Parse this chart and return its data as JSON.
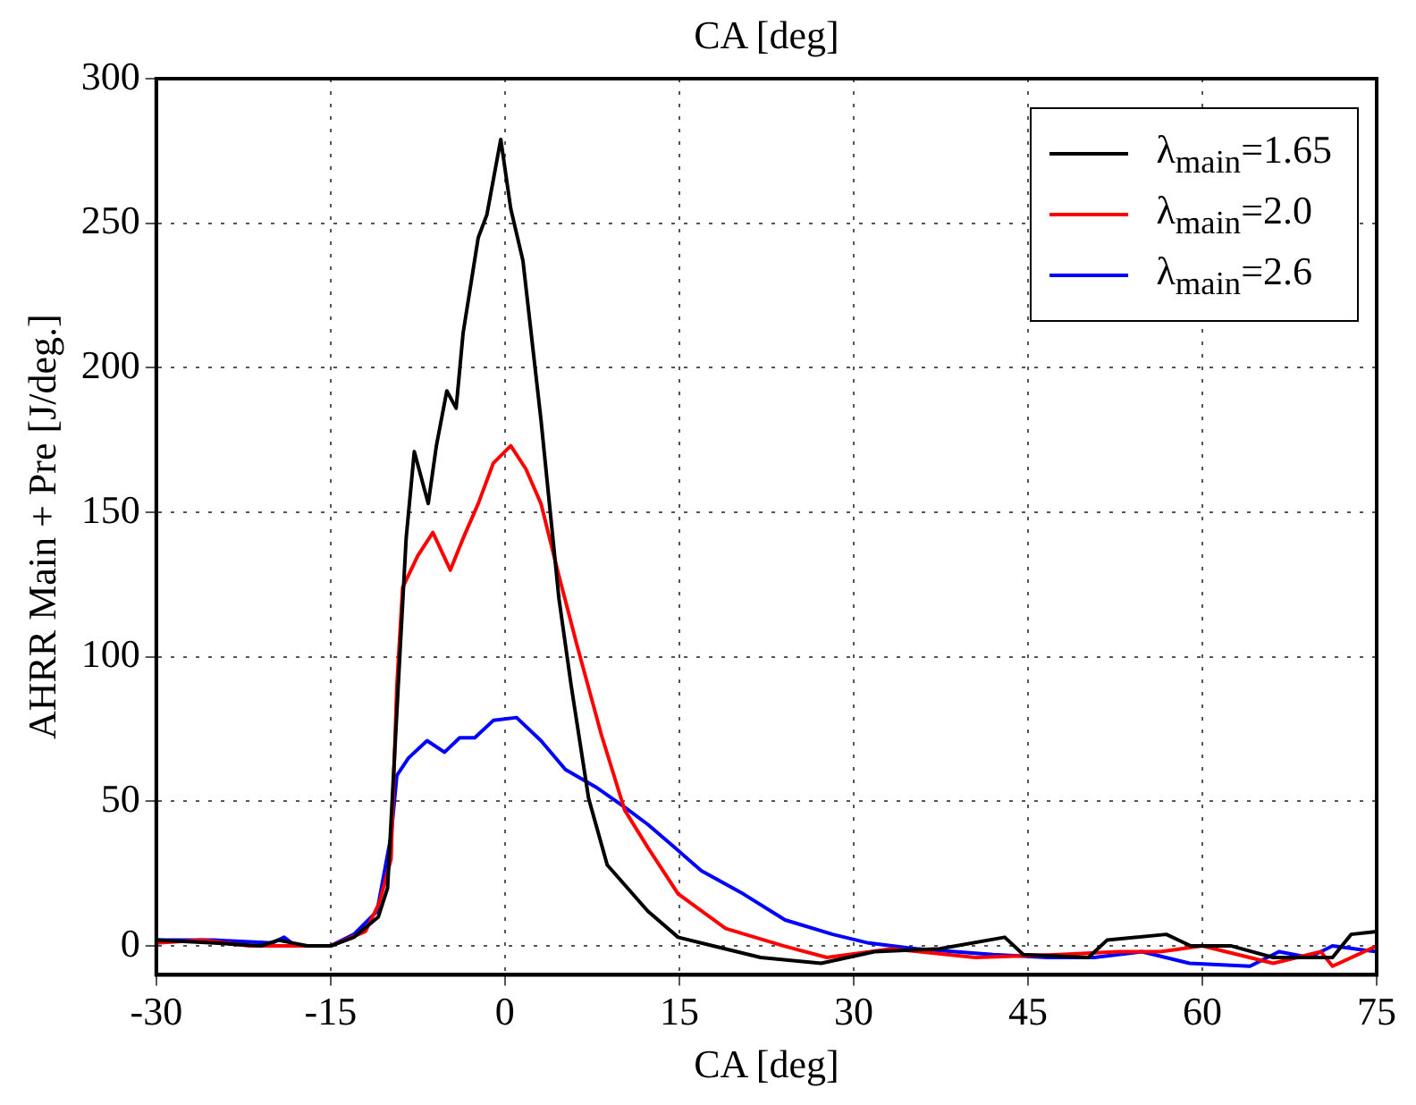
{
  "chart_data": {
    "type": "line",
    "xlabel": "CA [deg]",
    "ylabel": "AHRR Main + Pre [J/deg.]",
    "annotations": [
      "CA [deg]"
    ],
    "xlim": [
      -30,
      75
    ],
    "xticks": [
      -30,
      -15,
      0,
      15,
      30,
      45,
      60,
      75
    ],
    "ylim": [
      -10,
      300
    ],
    "yticks": [
      0,
      50,
      100,
      150,
      200,
      250,
      300
    ],
    "grid": true,
    "legend": "top right",
    "marker": "none",
    "line_style": "solid",
    "series": [
      {
        "name": "λ$_{main}$=1.65",
        "color": "#000000",
        "x": [
          -30,
          -25,
          -21,
          -19.5,
          -17,
          -15,
          -13,
          -10.9,
          -10.1,
          -9.05,
          -8.5,
          -7.8,
          -6.6,
          -5.9,
          -5.0,
          -4.2,
          -3.6,
          -2.3,
          -1.55,
          -0.36,
          0.5,
          1.55,
          3.1,
          4.65,
          5.7,
          7.2,
          8.8,
          12.3,
          14.9,
          17.9,
          22,
          27.2,
          31.8,
          37.4,
          43,
          44.6,
          50.2,
          51.8,
          56.9,
          59,
          62.5,
          66.1,
          71.2,
          72.8,
          75
        ],
        "values": [
          2,
          1,
          0,
          2,
          0,
          0,
          3,
          10,
          20,
          100,
          141,
          171,
          153,
          173,
          192,
          186,
          212,
          245,
          253,
          279,
          255,
          237,
          182,
          120,
          90,
          51,
          28,
          12,
          3,
          0,
          -4,
          -6,
          -2,
          -1,
          3,
          -3,
          -4,
          2,
          4,
          0,
          0,
          -4,
          -4,
          4,
          5
        ]
      },
      {
        "name": "λ$_{main}$=2.0",
        "color": "#ff0000",
        "x": [
          -30,
          -26,
          -22,
          -18,
          -15,
          -12,
          -10.8,
          -9.8,
          -9.3,
          -8.8,
          -7.5,
          -6.2,
          -4.7,
          -3.6,
          -2.3,
          -1.0,
          0.5,
          1.8,
          3.1,
          4.65,
          6.2,
          8.3,
          10.3,
          12.3,
          14.9,
          19,
          24,
          27.7,
          33.3,
          40.5,
          47.7,
          52.8,
          56.4,
          60,
          66.1,
          70.2,
          71.2,
          75
        ],
        "values": [
          1,
          2,
          0,
          0,
          0,
          5,
          15,
          30,
          90,
          124,
          135,
          143,
          130,
          141,
          153,
          167,
          173,
          165,
          153,
          128,
          104,
          73,
          47,
          34,
          18,
          6,
          0,
          -4,
          -1,
          -4,
          -3,
          -2,
          -2,
          0,
          -6,
          -2,
          -7,
          0
        ]
      },
      {
        "name": "λ$_{main}$=2.6",
        "color": "#0000ff",
        "x": [
          -30,
          -25,
          -20,
          -19,
          -18,
          -15,
          -13,
          -11,
          -9.8,
          -9.3,
          -8.3,
          -6.7,
          -5.2,
          -3.9,
          -2.6,
          -1.0,
          1.0,
          3.1,
          5.2,
          7.8,
          10.3,
          12.3,
          14.9,
          16.9,
          20.5,
          24.1,
          28.2,
          31.3,
          35.4,
          42,
          46.7,
          50.7,
          54.8,
          58.9,
          64.1,
          66.6,
          69.2,
          71.2,
          75
        ],
        "values": [
          2,
          2,
          1,
          3,
          0,
          0,
          4,
          12,
          38,
          59,
          65,
          71,
          67,
          72,
          72,
          78,
          79,
          71,
          61,
          55,
          48,
          42,
          33,
          26,
          18,
          9,
          4,
          1,
          -1,
          -3,
          -4,
          -4,
          -2,
          -6,
          -7,
          -2,
          -4,
          0,
          -2
        ]
      }
    ]
  }
}
